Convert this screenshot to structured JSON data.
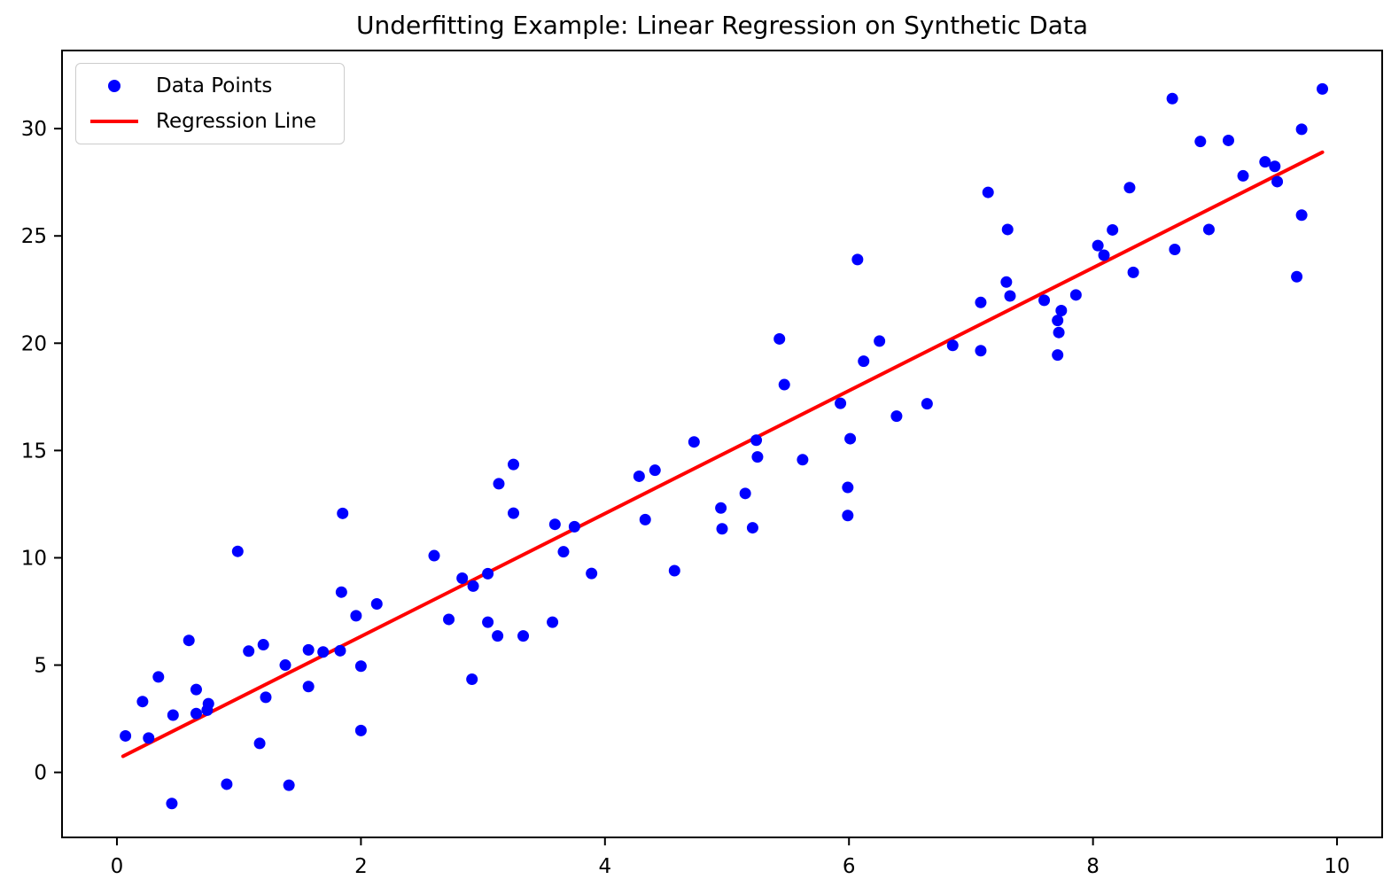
{
  "chart_data": {
    "type": "scatter",
    "title": "Underfitting Example: Linear Regression on Synthetic Data",
    "xlabel": "",
    "ylabel": "",
    "x_ticks": [
      0,
      2,
      4,
      6,
      8,
      10
    ],
    "y_ticks": [
      0,
      5,
      10,
      15,
      20,
      25,
      30
    ],
    "xlim": [
      -0.45,
      10.37
    ],
    "ylim": [
      -3.03,
      33.64
    ],
    "grid": false,
    "legend": {
      "position": "upper-left",
      "entries": [
        {
          "label": "Data Points",
          "marker": "circle",
          "color": "#0000ff"
        },
        {
          "label": "Regression Line",
          "marker": "line",
          "color": "#ff0000"
        }
      ]
    },
    "series": [
      {
        "name": "Data Points",
        "type": "scatter",
        "color": "#0000ff",
        "points": [
          [
            0.07,
            1.7
          ],
          [
            0.21,
            3.3
          ],
          [
            0.26,
            1.6
          ],
          [
            0.34,
            4.45
          ],
          [
            0.45,
            -1.45
          ],
          [
            0.46,
            2.67
          ],
          [
            0.59,
            6.15
          ],
          [
            0.65,
            2.74
          ],
          [
            0.65,
            3.86
          ],
          [
            0.74,
            2.9
          ],
          [
            0.75,
            3.2
          ],
          [
            0.9,
            -0.55
          ],
          [
            0.99,
            10.3
          ],
          [
            1.08,
            5.65
          ],
          [
            1.17,
            1.35
          ],
          [
            1.2,
            5.95
          ],
          [
            1.22,
            3.5
          ],
          [
            1.38,
            5.0
          ],
          [
            1.41,
            -0.6
          ],
          [
            1.57,
            4.0
          ],
          [
            1.57,
            5.71
          ],
          [
            1.69,
            5.61
          ],
          [
            1.83,
            5.67
          ],
          [
            1.84,
            8.4
          ],
          [
            1.85,
            12.07
          ],
          [
            1.96,
            7.3
          ],
          [
            2.0,
            1.95
          ],
          [
            2.0,
            4.95
          ],
          [
            2.13,
            7.85
          ],
          [
            2.6,
            10.1
          ],
          [
            2.72,
            7.13
          ],
          [
            2.83,
            9.05
          ],
          [
            2.91,
            4.34
          ],
          [
            2.92,
            8.68
          ],
          [
            3.04,
            7.0
          ],
          [
            3.04,
            9.26
          ],
          [
            3.12,
            6.36
          ],
          [
            3.13,
            13.45
          ],
          [
            3.25,
            12.08
          ],
          [
            3.25,
            14.35
          ],
          [
            3.33,
            6.36
          ],
          [
            3.57,
            7.0
          ],
          [
            3.59,
            11.56
          ],
          [
            3.66,
            10.28
          ],
          [
            3.75,
            11.45
          ],
          [
            3.89,
            9.27
          ],
          [
            4.28,
            13.8
          ],
          [
            4.33,
            11.78
          ],
          [
            4.41,
            14.08
          ],
          [
            4.57,
            9.4
          ],
          [
            4.73,
            15.4
          ],
          [
            4.95,
            12.32
          ],
          [
            4.96,
            11.35
          ],
          [
            5.15,
            13.0
          ],
          [
            5.21,
            11.4
          ],
          [
            5.24,
            15.48
          ],
          [
            5.25,
            14.7
          ],
          [
            5.43,
            20.2
          ],
          [
            5.47,
            18.07
          ],
          [
            5.62,
            14.57
          ],
          [
            5.93,
            17.2
          ],
          [
            5.99,
            13.28
          ],
          [
            5.99,
            11.97
          ],
          [
            6.01,
            15.55
          ],
          [
            6.07,
            23.9
          ],
          [
            6.12,
            19.16
          ],
          [
            6.25,
            20.1
          ],
          [
            6.39,
            16.6
          ],
          [
            6.64,
            17.18
          ],
          [
            6.85,
            19.9
          ],
          [
            7.08,
            19.65
          ],
          [
            7.08,
            21.9
          ],
          [
            7.14,
            27.03
          ],
          [
            7.29,
            22.85
          ],
          [
            7.3,
            25.3
          ],
          [
            7.32,
            22.2
          ],
          [
            7.6,
            22.0
          ],
          [
            7.71,
            19.45
          ],
          [
            7.71,
            21.06
          ],
          [
            7.72,
            20.5
          ],
          [
            7.74,
            21.52
          ],
          [
            7.86,
            22.25
          ],
          [
            8.04,
            24.55
          ],
          [
            8.09,
            24.1
          ],
          [
            8.16,
            25.28
          ],
          [
            8.3,
            27.25
          ],
          [
            8.33,
            23.3
          ],
          [
            8.65,
            31.4
          ],
          [
            8.67,
            24.37
          ],
          [
            8.88,
            29.4
          ],
          [
            8.95,
            25.3
          ],
          [
            9.11,
            29.45
          ],
          [
            9.23,
            27.8
          ],
          [
            9.41,
            28.45
          ],
          [
            9.49,
            28.24
          ],
          [
            9.51,
            27.53
          ],
          [
            9.67,
            23.1
          ],
          [
            9.71,
            25.97
          ],
          [
            9.71,
            29.97
          ],
          [
            9.88,
            31.85
          ]
        ]
      },
      {
        "name": "Regression Line",
        "type": "line",
        "color": "#ff0000",
        "x_start": 0.05,
        "y_start": 0.75,
        "x_end": 9.88,
        "y_end": 28.9
      }
    ],
    "colors": {
      "points": "#0000ff",
      "line": "#ff0000",
      "axes": "#000000",
      "background": "#ffffff",
      "legend_border": "#cccccc"
    }
  }
}
